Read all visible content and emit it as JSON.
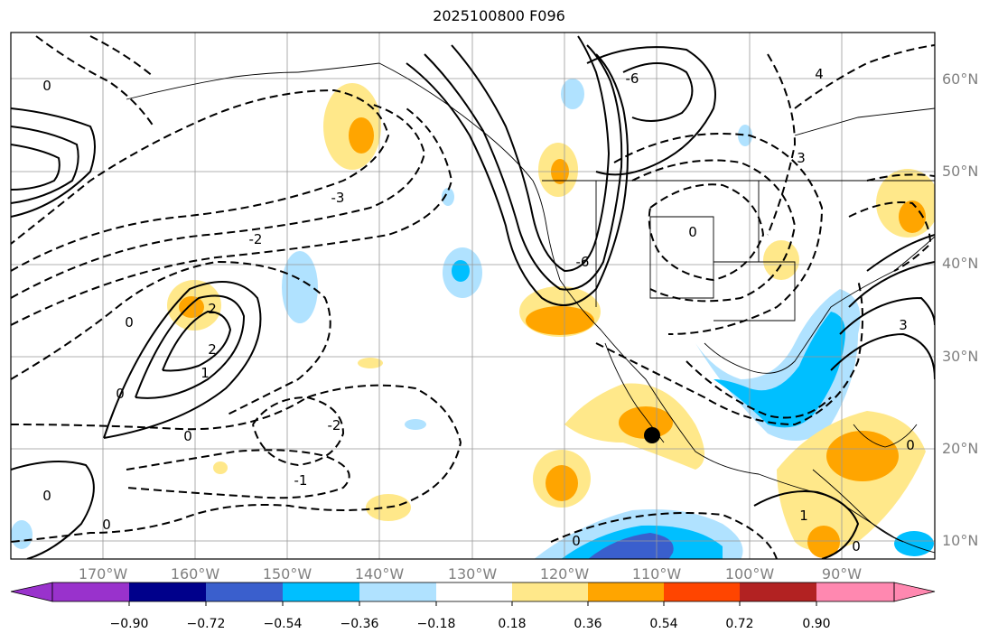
{
  "title": "2025100800 F096",
  "map": {
    "latitude_labels": [
      "60°N",
      "50°N",
      "40°N",
      "30°N",
      "20°N",
      "10°N"
    ],
    "longitude_labels": [
      "170°W",
      "160°W",
      "150°W",
      "140°W",
      "130°W",
      "120°W",
      "110°W",
      "100°W",
      "90°W"
    ],
    "contour_labels": [
      "0",
      "-1",
      "-2",
      "-3",
      "2",
      "1",
      "-6",
      "3",
      "-4",
      "4"
    ],
    "marker": "black dot near 110°W, 21°N"
  },
  "colorbar": {
    "tick_labels": [
      "−0.90",
      "−0.72",
      "−0.54",
      "−0.36",
      "−0.18",
      "0.18",
      "0.36",
      "0.54",
      "0.72",
      "0.90"
    ],
    "colors": [
      "#9932cc",
      "#00008b",
      "#3a5fcd",
      "#00bfff",
      "#b0e2ff",
      "#ffffff",
      "#ffe88a",
      "#ffa500",
      "#ff4500",
      "#b22222",
      "#ff88b0"
    ]
  }
}
